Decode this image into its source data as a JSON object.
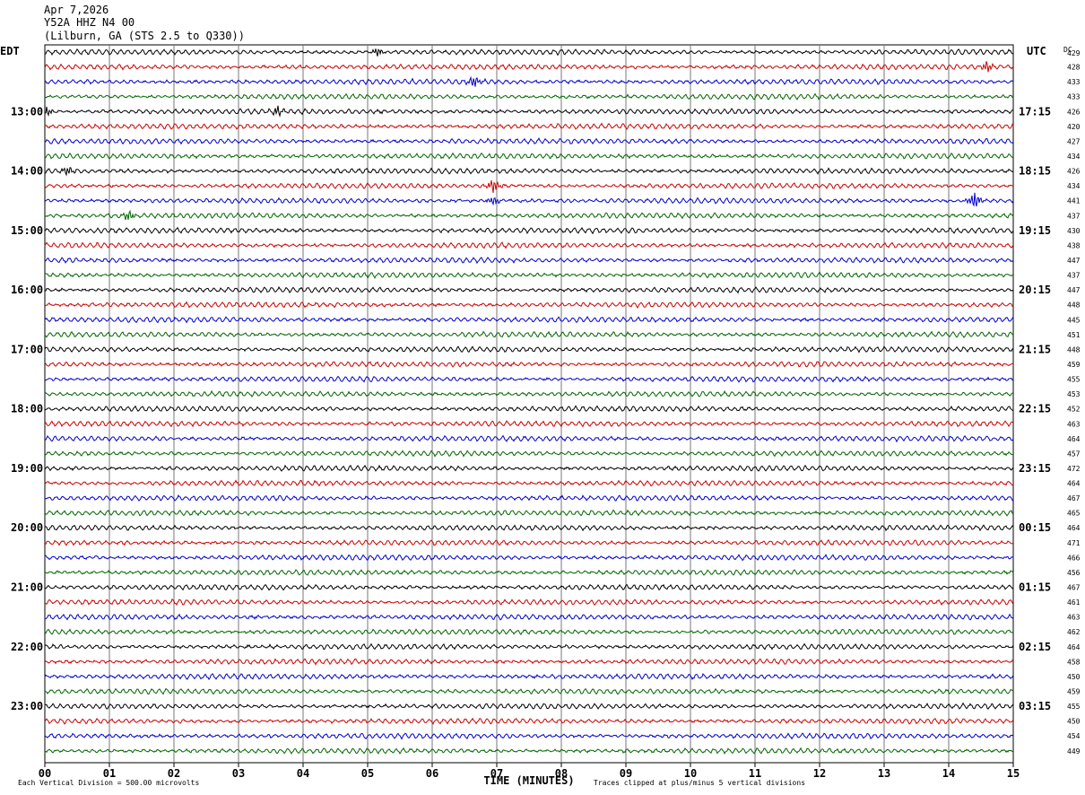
{
  "header": {
    "date": "Apr 7,2026",
    "station": "Y52A HHZ N4 00",
    "location": "(Lilburn, GA (STS 2.5 to Q330))"
  },
  "chart_data": {
    "type": "line",
    "title": "",
    "left_timezone": "EDT",
    "right_timezone": "UTC",
    "dc_label": "DC",
    "xlabel": "TIME (MINUTES)",
    "x_ticks": [
      "00",
      "01",
      "02",
      "03",
      "04",
      "05",
      "06",
      "07",
      "08",
      "09",
      "10",
      "11",
      "12",
      "13",
      "14",
      "15"
    ],
    "xlim": [
      0,
      15
    ],
    "row_count": 48,
    "row_colors": [
      "#000000",
      "#cc0000",
      "#0000cc",
      "#006600"
    ],
    "left_hour_labels": [
      "13:00",
      "14:00",
      "15:00",
      "16:00",
      "17:00",
      "18:00",
      "19:00",
      "20:00",
      "21:00",
      "22:00",
      "23:00"
    ],
    "right_hour_labels": [
      "17:15",
      "18:15",
      "19:15",
      "20:15",
      "21:15",
      "22:15",
      "23:15",
      "00:15",
      "01:15",
      "02:15",
      "03:15"
    ],
    "dc_offsets": [
      429,
      428,
      433,
      433,
      426,
      420,
      427,
      434,
      426,
      434,
      441,
      437,
      430,
      438,
      447,
      437,
      447,
      448,
      445,
      451,
      448,
      459,
      455,
      453,
      452,
      463,
      464,
      457,
      472,
      464,
      467,
      465,
      464,
      471,
      466,
      456,
      467,
      461,
      463,
      462,
      464,
      458,
      450,
      459,
      455,
      450,
      454,
      449
    ],
    "events": [
      {
        "row": 0,
        "minute": 5.15,
        "amplitude": 2.5
      },
      {
        "row": 1,
        "minute": 14.6,
        "amplitude": 3.0
      },
      {
        "row": 2,
        "minute": 6.65,
        "amplitude": 3.5
      },
      {
        "row": 4,
        "minute": 3.6,
        "amplitude": 3.0
      },
      {
        "row": 4,
        "minute": 0.02,
        "amplitude": 2.5
      },
      {
        "row": 8,
        "minute": 0.35,
        "amplitude": 2.5
      },
      {
        "row": 9,
        "minute": 6.95,
        "amplitude": 4.0
      },
      {
        "row": 10,
        "minute": 14.4,
        "amplitude": 5.0
      },
      {
        "row": 10,
        "minute": 6.95,
        "amplitude": 2.5
      },
      {
        "row": 11,
        "minute": 1.3,
        "amplitude": 3.0
      }
    ],
    "footer_left": "Each Vertical Division =  500.00 microvolts",
    "footer_right": "Traces clipped at plus/minus 5 vertical divisions"
  }
}
